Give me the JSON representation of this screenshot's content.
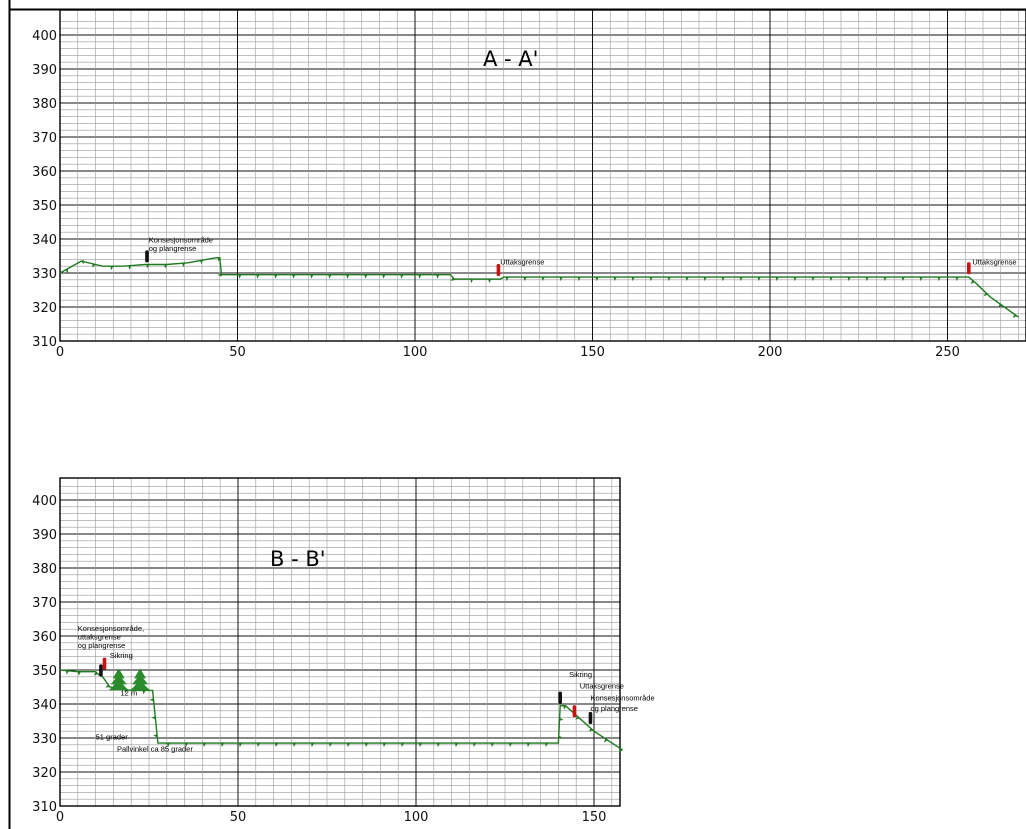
{
  "colors": {
    "grid_minor": "#9a9a9a",
    "grid_major": "#111111",
    "terrain": "#1f7a1f",
    "marker_red": "#cc1111",
    "marker_black": "#111111",
    "tree": "#2b8a2b"
  },
  "chart_data": [
    {
      "type": "line",
      "title": "A - A'",
      "xlim": [
        0,
        270
      ],
      "ylim": [
        310,
        405
      ],
      "x_ticks": [
        "0",
        "50",
        "100",
        "150",
        "200",
        "250"
      ],
      "y_ticks": [
        "400",
        "390",
        "380",
        "370",
        "360",
        "350",
        "340",
        "330",
        "320",
        "310"
      ],
      "series": [
        {
          "x": [
            0,
            6,
            12,
            18,
            24,
            30,
            36,
            44,
            45,
            45.5,
            110,
            111,
            124,
            125,
            256,
            258,
            262,
            270
          ],
          "y": [
            330,
            333.5,
            332,
            332,
            332.5,
            332.5,
            333,
            334.5,
            334.5,
            329.5,
            329.5,
            328.2,
            328.2,
            328.8,
            328.8,
            327,
            323,
            317
          ]
        }
      ],
      "annotations": [
        {
          "text": "Konsesjonsområde",
          "x": 25,
          "y": 339
        },
        {
          "text": "og plangrense",
          "x": 25,
          "y": 336.5
        },
        {
          "text": "Uttaksgrense",
          "x": 124,
          "y": 332.5
        },
        {
          "text": "Uttaksgrense",
          "x": 257,
          "y": 332.5
        }
      ],
      "markers": [
        {
          "x": 24.5,
          "y": 334,
          "color": "black"
        },
        {
          "x": 123.5,
          "y": 330,
          "color": "red"
        },
        {
          "x": 256,
          "y": 330.5,
          "color": "red"
        }
      ]
    },
    {
      "type": "line",
      "title": "B - B'",
      "xlim": [
        0,
        158
      ],
      "ylim": [
        310,
        405
      ],
      "x_ticks": [
        "0",
        "50",
        "100",
        "150"
      ],
      "y_ticks": [
        "400",
        "390",
        "380",
        "370",
        "360",
        "350",
        "340",
        "330",
        "320",
        "310"
      ],
      "series": [
        {
          "x": [
            0,
            5,
            10,
            11,
            12,
            14,
            20,
            26,
            26.5,
            27.5,
            140,
            140.5,
            142,
            150,
            158
          ],
          "y": [
            350,
            349.5,
            349.5,
            348.5,
            348,
            345,
            344,
            344,
            339,
            328.5,
            328.5,
            339.5,
            339.5,
            332,
            326.5
          ]
        }
      ],
      "annotations": [
        {
          "text": "Konsesjonsområde,",
          "x": 5,
          "y": 361.5
        },
        {
          "text": "uttaksgrense",
          "x": 5,
          "y": 359
        },
        {
          "text": "og plangrense",
          "x": 5,
          "y": 356.5
        },
        {
          "text": "Sikring",
          "x": 14,
          "y": 353.5
        },
        {
          "text": "12 m",
          "x": 17,
          "y": 342.5
        },
        {
          "text": "51 grader",
          "x": 10,
          "y": 329.5
        },
        {
          "text": "Pallvinkel ca 85 grader",
          "x": 16,
          "y": 326
        },
        {
          "text": "Sikring",
          "x": 143,
          "y": 348
        },
        {
          "text": "Uttaksgrense",
          "x": 146,
          "y": 344.5
        },
        {
          "text": "Konsesjonsområde",
          "x": 149,
          "y": 341
        },
        {
          "text": "og plangrense",
          "x": 149,
          "y": 338
        }
      ],
      "markers": [
        {
          "x": 11.5,
          "y": 349,
          "color": "black"
        },
        {
          "x": 12.5,
          "y": 351,
          "color": "red"
        },
        {
          "x": 140.5,
          "y": 341,
          "color": "black"
        },
        {
          "x": 144.5,
          "y": 337,
          "color": "red"
        },
        {
          "x": 149,
          "y": 335,
          "color": "black"
        }
      ],
      "trees": [
        16.5,
        22.5
      ]
    }
  ]
}
